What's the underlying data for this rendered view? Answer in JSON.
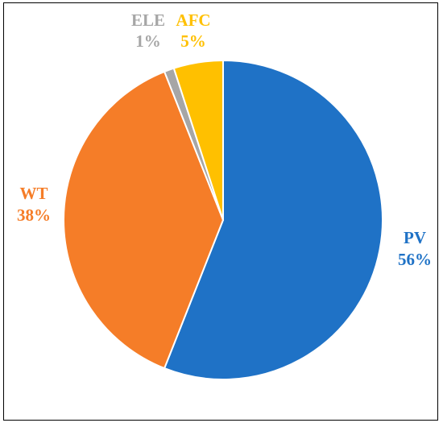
{
  "chart_data": {
    "type": "pie",
    "slices": [
      {
        "name": "PV",
        "value": 56,
        "label": "56%",
        "color": "#1F72C6"
      },
      {
        "name": "WT",
        "value": 38,
        "label": "38%",
        "color": "#F57D28"
      },
      {
        "name": "ELE",
        "value": 1,
        "label": "1%",
        "color": "#A6A6A6"
      },
      {
        "name": "AFC",
        "value": 5,
        "label": "5%",
        "color": "#FFC000"
      }
    ],
    "start": "12 o'clock",
    "direction": "clockwise",
    "legend": "none",
    "title": ""
  }
}
